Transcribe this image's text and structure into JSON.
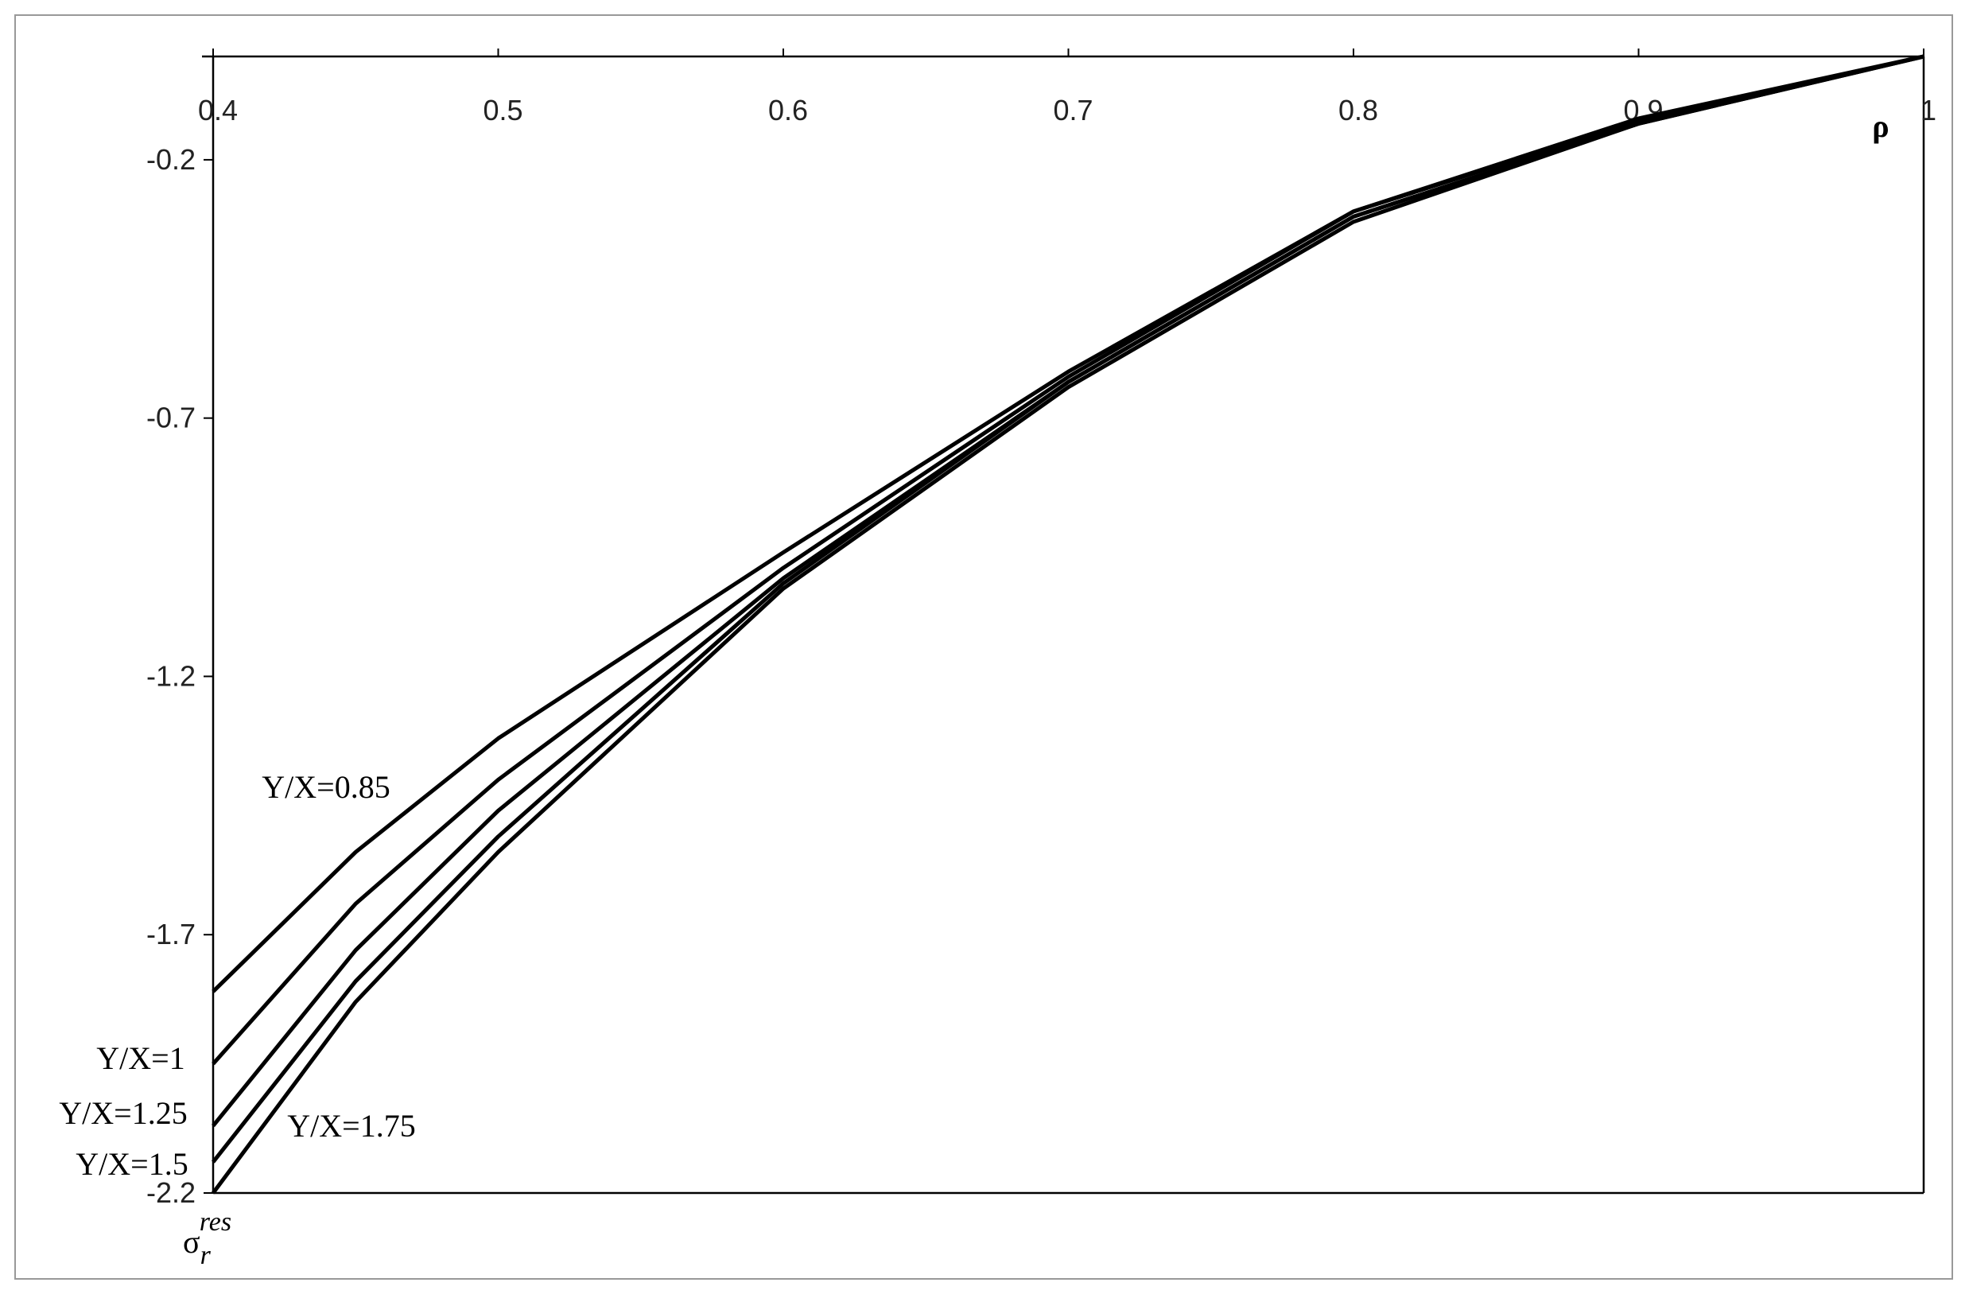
{
  "chart_data": {
    "type": "line",
    "x_label": "ρ",
    "y_label": "σ",
    "y_label_sub": "r",
    "y_label_sup": "res",
    "x": [
      0.4,
      0.45,
      0.5,
      0.6,
      0.7,
      0.8,
      0.9,
      1.0
    ],
    "series": [
      {
        "name": "Y/X=0.85",
        "color": "#000000",
        "values": [
          -1.81,
          -1.54,
          -1.32,
          -0.96,
          -0.61,
          -0.3,
          -0.12,
          0
        ]
      },
      {
        "name": "Y/X=1",
        "color": "#000000",
        "values": [
          -1.95,
          -1.64,
          -1.4,
          -0.99,
          -0.62,
          -0.3,
          -0.125,
          0
        ]
      },
      {
        "name": "Y/X=1.25",
        "color": "#000000",
        "values": [
          -2.07,
          -1.73,
          -1.46,
          -1.01,
          -0.63,
          -0.31,
          -0.13,
          0
        ]
      },
      {
        "name": "Y/X=1.5",
        "color": "#000000",
        "values": [
          -2.14,
          -1.79,
          -1.51,
          -1.02,
          -0.63,
          -0.31,
          -0.13,
          0
        ]
      },
      {
        "name": "Y/X=1.75",
        "color": "#000000",
        "values": [
          -2.2,
          -1.83,
          -1.54,
          -1.03,
          -0.64,
          -0.32,
          -0.13,
          0
        ]
      }
    ],
    "xlim": [
      0.4,
      1
    ],
    "ylim": [
      -2.2,
      0
    ],
    "xticks": [
      0.4,
      0.5,
      0.6,
      0.7,
      0.8,
      0.9,
      1
    ],
    "yticks": [
      -0.2,
      -0.7,
      -1.2,
      -1.7,
      -2.2
    ],
    "grid": false
  }
}
